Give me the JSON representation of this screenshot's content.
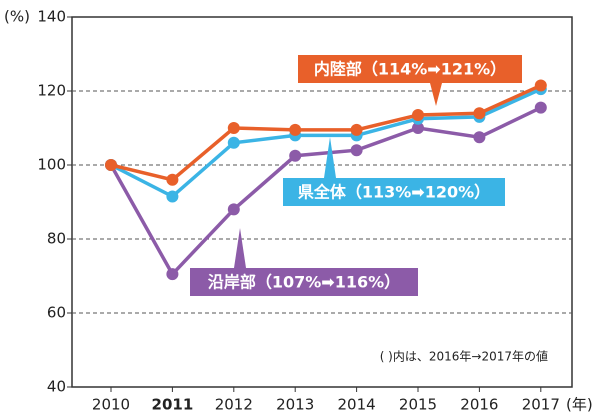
{
  "chart_data": {
    "type": "line",
    "categories": [
      "2010",
      "2011",
      "2012",
      "2013",
      "2014",
      "2015",
      "2016",
      "2017"
    ],
    "x_unit": "(年)",
    "y_unit": "(%)",
    "ylim": [
      40,
      140
    ],
    "yticks": [
      40,
      60,
      80,
      100,
      120,
      140
    ],
    "grid": true,
    "bold_category_index": 1,
    "annotation": "( )内は、2016年→2017年の値",
    "series": [
      {
        "name": "沿岸部（107%➡116%）",
        "color": "#8c5ba8",
        "values": [
          100,
          70.5,
          88,
          102.5,
          104,
          110,
          107.5,
          115.5
        ]
      },
      {
        "name": "県全体（113%➡120%）",
        "color": "#3bb4e5",
        "values": [
          100,
          91.5,
          106,
          108,
          108,
          112.5,
          113,
          120.5
        ]
      },
      {
        "name": "内陸部（114%➡121%）",
        "color": "#e8602a",
        "values": [
          100,
          96,
          110,
          109.5,
          109.5,
          113.5,
          114,
          121.5
        ]
      }
    ]
  }
}
